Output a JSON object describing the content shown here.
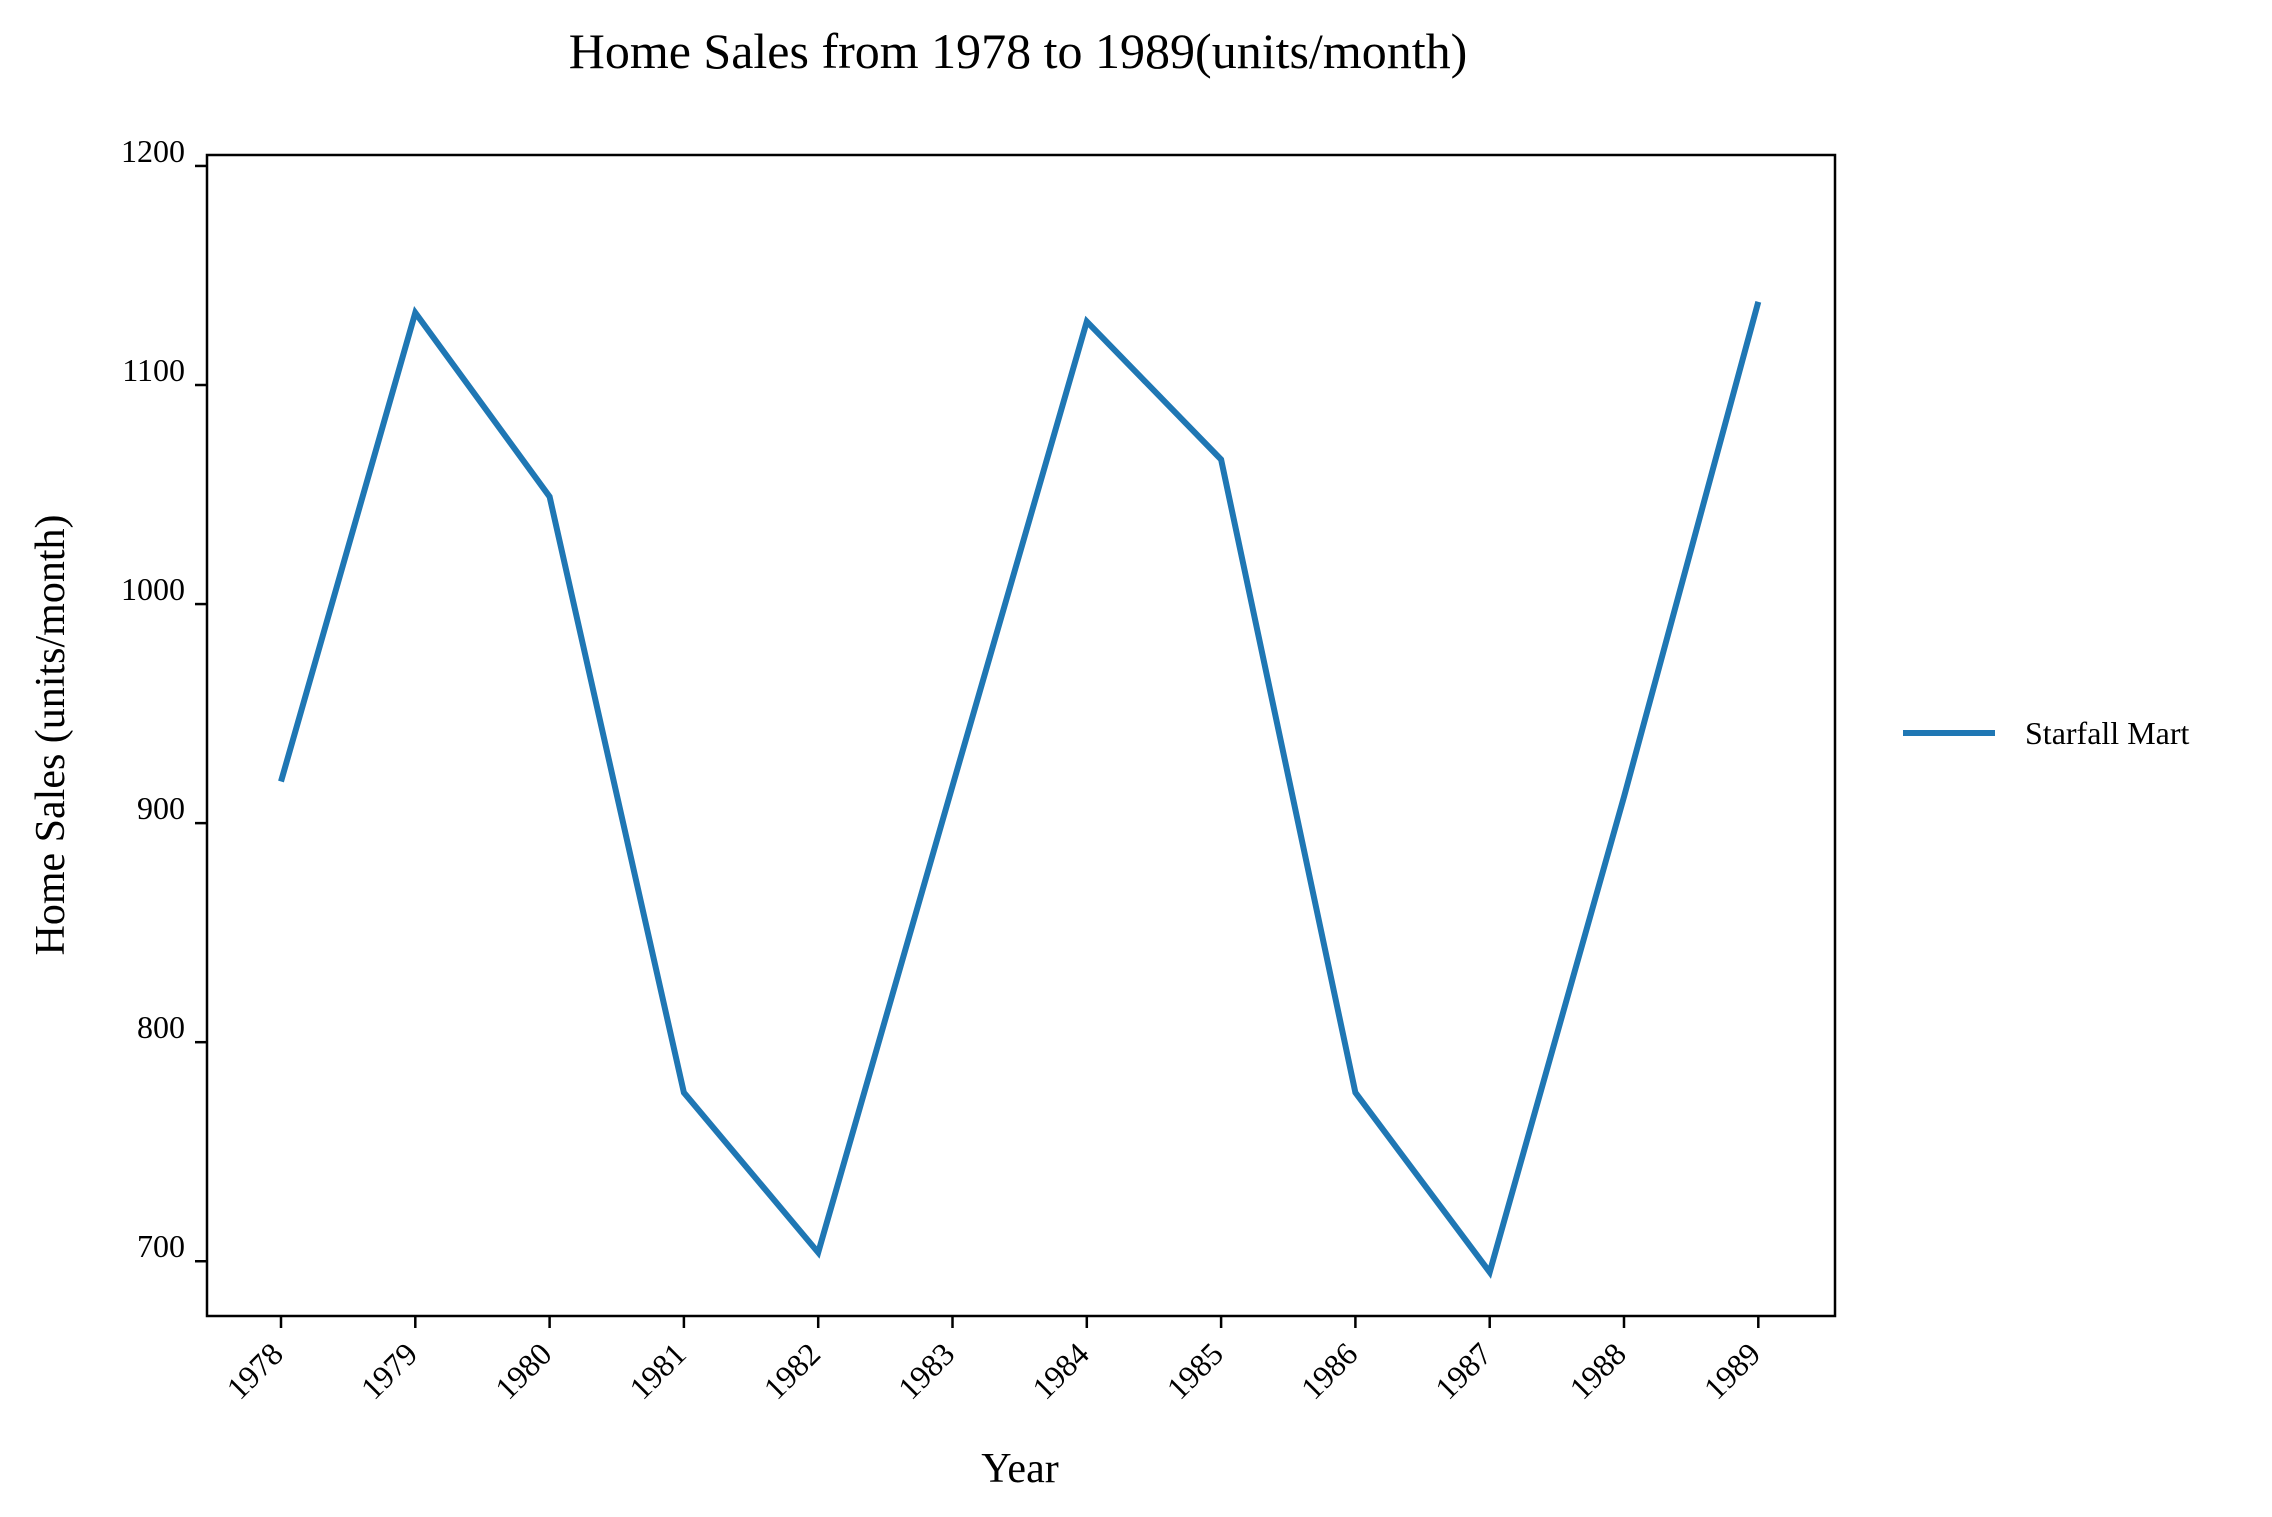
{
  "chart_data": {
    "type": "line",
    "title": "Home Sales from 1978 to 1989(units/month)",
    "xlabel": "Year",
    "ylabel": "Home Sales (units/month)",
    "categories": [
      "1978",
      "1979",
      "1980",
      "1981",
      "1982",
      "1983",
      "1984",
      "1985",
      "1986",
      "1987",
      "1988",
      "1989"
    ],
    "series": [
      {
        "name": "Starfall Mart",
        "values": [
          919,
          1133,
          1049,
          777,
          704,
          917,
          1129,
          1066,
          777,
          695,
          912,
          1138
        ],
        "color": "#1f77b4"
      }
    ],
    "ylim": [
      675,
      1205
    ],
    "yticks": [
      700,
      800,
      900,
      1000,
      1100,
      1200
    ],
    "grid": false,
    "legend": "right"
  }
}
